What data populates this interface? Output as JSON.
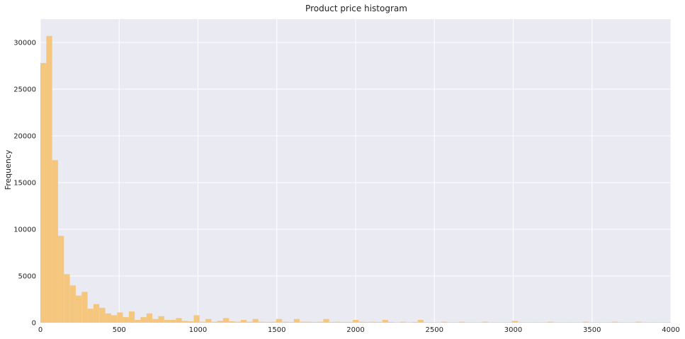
{
  "chart_data": {
    "type": "bar",
    "title": "Product price histogram",
    "xlabel": "",
    "ylabel": "Frequency",
    "xlim": [
      0,
      4000
    ],
    "ylim": [
      0,
      32500
    ],
    "grid": true,
    "colors": {
      "plot_background": "#eaeaf2",
      "grid": "#ffffff",
      "bar": "#f5c77e"
    },
    "x_ticks": [
      0,
      500,
      1000,
      1500,
      2000,
      2500,
      3000,
      3500,
      4000
    ],
    "y_ticks": [
      0,
      5000,
      10000,
      15000,
      20000,
      25000,
      30000
    ],
    "bin_width": 37.4,
    "bin_starts": [
      0,
      37.4,
      74.8,
      112.2,
      149.6,
      187.0,
      224.4,
      261.8,
      299.2,
      336.6,
      374.0,
      411.4,
      448.8,
      486.2,
      523.6,
      561.0,
      598.4,
      635.8,
      673.2,
      710.6,
      748.0,
      785.4,
      822.8,
      860.2,
      897.6,
      935.0,
      972.4,
      1009.8,
      1047.2,
      1084.6,
      1122.0,
      1159.4,
      1196.8,
      1234.2,
      1271.6,
      1309.0,
      1346.4,
      1383.8,
      1421.2,
      1458.6,
      1496.0,
      1533.4,
      1570.8,
      1608.2,
      1645.6,
      1683.0,
      1720.4,
      1757.8,
      1795.2,
      1832.6,
      1870.0,
      1907.4,
      1944.8,
      1982.2,
      2019.6,
      2057.0,
      2094.4,
      2131.8,
      2169.2,
      2206.6,
      2244.0,
      2281.4,
      2318.8,
      2356.2,
      2393.6,
      2431.0,
      2468.4,
      2505.8,
      2543.2,
      2580.6,
      2618.0,
      2655.4,
      2692.8,
      2730.2,
      2767.6,
      2805.0,
      2842.4,
      2879.8,
      2917.2,
      2954.6,
      2992.0,
      3029.4,
      3066.8,
      3104.2,
      3141.6,
      3179.0,
      3216.4,
      3253.8,
      3291.2,
      3328.6,
      3366.0,
      3403.4,
      3440.8,
      3478.2,
      3515.6,
      3553.0,
      3590.4,
      3627.8,
      3665.2,
      3702.6,
      3740.0,
      3777.4,
      3814.8,
      3852.2,
      3889.6,
      3927.0,
      3964.4
    ],
    "values": [
      27800,
      30700,
      17400,
      9300,
      5200,
      4000,
      2900,
      3300,
      1500,
      2000,
      1600,
      1000,
      800,
      1100,
      600,
      1200,
      300,
      600,
      1000,
      400,
      700,
      300,
      300,
      500,
      200,
      150,
      800,
      100,
      400,
      100,
      200,
      500,
      150,
      100,
      300,
      100,
      400,
      100,
      80,
      100,
      400,
      100,
      80,
      400,
      100,
      100,
      80,
      100,
      400,
      80,
      100,
      80,
      80,
      300,
      100,
      80,
      100,
      80,
      300,
      80,
      50,
      100,
      50,
      80,
      300,
      50,
      50,
      50,
      100,
      50,
      50,
      100,
      50,
      50,
      50,
      100,
      50,
      50,
      50,
      50,
      200,
      50,
      50,
      50,
      50,
      50,
      100,
      50,
      50,
      50,
      50,
      50,
      100,
      50,
      50,
      50,
      50,
      100,
      50,
      50,
      50,
      100,
      50,
      50,
      50,
      50,
      50
    ]
  }
}
